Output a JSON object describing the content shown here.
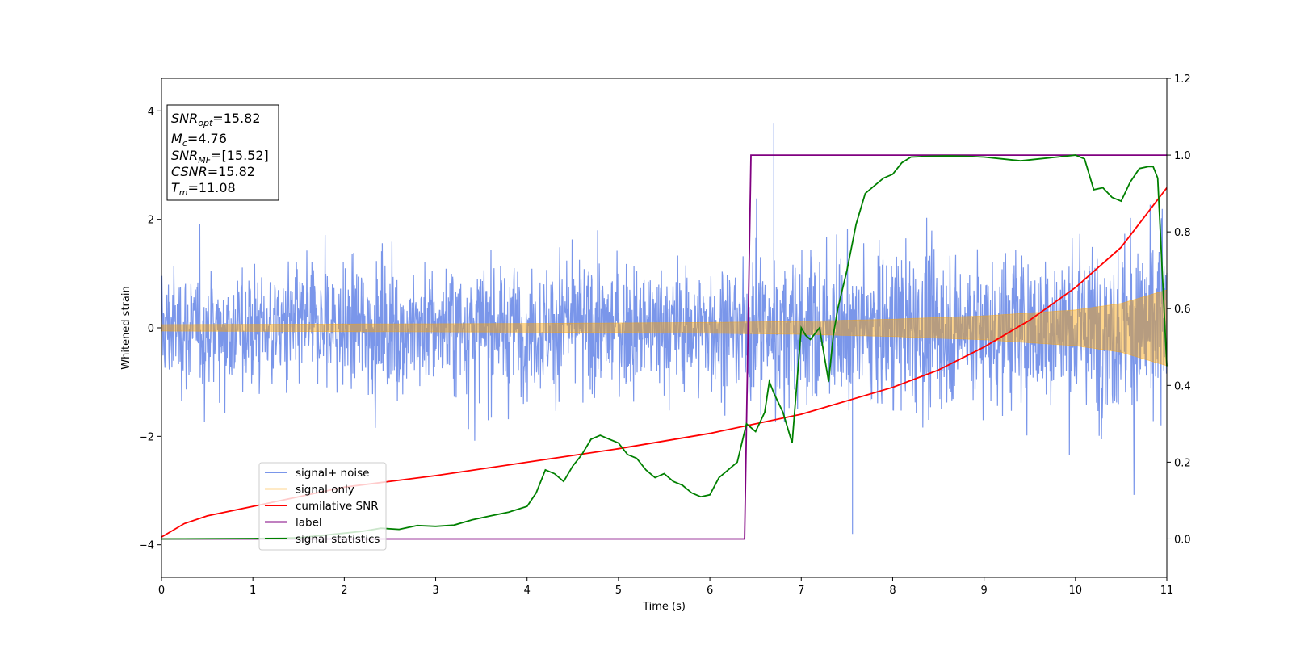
{
  "chart_data": {
    "type": "line",
    "title": "",
    "xlabel": "Time (s)",
    "ylabel": "Whitened strain",
    "xlim": [
      0,
      11
    ],
    "ylim_left": [
      -4.6,
      4.6
    ],
    "ylim_right": [
      -0.1,
      1.2
    ],
    "x_ticks": [
      0,
      1,
      2,
      3,
      4,
      5,
      6,
      7,
      8,
      9,
      10,
      11
    ],
    "y_ticks_left": [
      -4,
      -2,
      0,
      2,
      4
    ],
    "y_ticks_right": [
      0.0,
      0.2,
      0.4,
      0.6,
      0.8,
      1.0,
      1.2
    ],
    "grid": false,
    "legend_position": "lower-left",
    "info_box": {
      "lines": [
        {
          "sym": "SNR",
          "sub": "opt",
          "text": "=15.82"
        },
        {
          "sym": "M",
          "sub": "c",
          "text": "=4.76"
        },
        {
          "sym": "SNR",
          "sub": "MF",
          "text": "=[15.52]"
        },
        {
          "sym": "CSNR",
          "sub": "",
          "text": "=15.82"
        },
        {
          "sym": "T",
          "sub": "m",
          "text": "=11.08"
        }
      ]
    },
    "series": [
      {
        "name": "signal+ noise",
        "axis": "left",
        "color": "#4169e1",
        "opacity": 0.7,
        "envelope": {
          "t": [
            0,
            2,
            4,
            6,
            6.5,
            7,
            8,
            9,
            10,
            11
          ],
          "upper_typical": [
            1.2,
            1.3,
            1.3,
            1.3,
            1.5,
            1.5,
            1.6,
            1.6,
            1.7,
            1.9
          ],
          "lower_typical": [
            -1.3,
            -1.3,
            -1.3,
            -1.3,
            -1.5,
            -1.5,
            -1.6,
            -1.6,
            -1.7,
            -1.9
          ],
          "max_peak": 3.78,
          "min_peak": -3.8
        }
      },
      {
        "name": "signal only",
        "axis": "left",
        "color": "#ffa500",
        "opacity": 0.45,
        "amplitude": {
          "t": [
            0,
            2,
            4,
            6,
            7,
            8,
            9,
            10,
            10.5,
            11
          ],
          "amp": [
            0.06,
            0.07,
            0.08,
            0.1,
            0.12,
            0.16,
            0.22,
            0.33,
            0.45,
            0.7
          ]
        }
      },
      {
        "name": "cumilative SNR",
        "axis": "right",
        "color": "#ff0000",
        "x": [
          0,
          0.25,
          0.5,
          1,
          1.5,
          2,
          3,
          4,
          5,
          6,
          7,
          8,
          8.5,
          9,
          9.5,
          10,
          10.5,
          11
        ],
        "y": [
          0.005,
          0.04,
          0.06,
          0.085,
          0.11,
          0.135,
          0.165,
          0.2,
          0.235,
          0.275,
          0.325,
          0.395,
          0.44,
          0.5,
          0.57,
          0.655,
          0.76,
          0.915
        ]
      },
      {
        "name": "label",
        "axis": "right",
        "color": "#800080",
        "x": [
          0,
          6.38,
          6.45,
          11
        ],
        "y": [
          0,
          0,
          1,
          1
        ]
      },
      {
        "name": "signal statistics",
        "axis": "right",
        "color": "#008000",
        "x": [
          0,
          1,
          1.5,
          2,
          2.2,
          2.4,
          2.6,
          2.8,
          3.0,
          3.2,
          3.4,
          3.6,
          3.8,
          4.0,
          4.1,
          4.2,
          4.3,
          4.4,
          4.5,
          4.6,
          4.7,
          4.8,
          4.9,
          5.0,
          5.1,
          5.2,
          5.3,
          5.4,
          5.5,
          5.6,
          5.7,
          5.8,
          5.9,
          6.0,
          6.1,
          6.2,
          6.3,
          6.4,
          6.5,
          6.6,
          6.65,
          6.7,
          6.8,
          6.9,
          7.0,
          7.05,
          7.1,
          7.2,
          7.3,
          7.35,
          7.4,
          7.5,
          7.6,
          7.7,
          7.8,
          7.9,
          8.0,
          8.1,
          8.2,
          8.4,
          8.6,
          8.8,
          9.0,
          9.2,
          9.4,
          9.6,
          9.8,
          10.0,
          10.1,
          10.2,
          10.3,
          10.4,
          10.5,
          10.6,
          10.7,
          10.8,
          10.85,
          10.9,
          11.0
        ],
        "y": [
          0.0,
          0.001,
          0.003,
          0.015,
          0.02,
          0.028,
          0.025,
          0.035,
          0.033,
          0.036,
          0.05,
          0.06,
          0.07,
          0.085,
          0.12,
          0.18,
          0.17,
          0.15,
          0.19,
          0.22,
          0.26,
          0.27,
          0.26,
          0.25,
          0.22,
          0.21,
          0.18,
          0.16,
          0.17,
          0.15,
          0.14,
          0.12,
          0.11,
          0.115,
          0.16,
          0.18,
          0.2,
          0.3,
          0.28,
          0.33,
          0.41,
          0.38,
          0.33,
          0.25,
          0.55,
          0.53,
          0.52,
          0.55,
          0.41,
          0.53,
          0.6,
          0.7,
          0.82,
          0.9,
          0.92,
          0.94,
          0.95,
          0.98,
          0.995,
          0.997,
          0.998,
          0.997,
          0.995,
          0.99,
          0.985,
          0.99,
          0.995,
          1.0,
          0.99,
          0.91,
          0.915,
          0.89,
          0.88,
          0.93,
          0.965,
          0.97,
          0.97,
          0.94,
          0.45
        ]
      }
    ]
  }
}
